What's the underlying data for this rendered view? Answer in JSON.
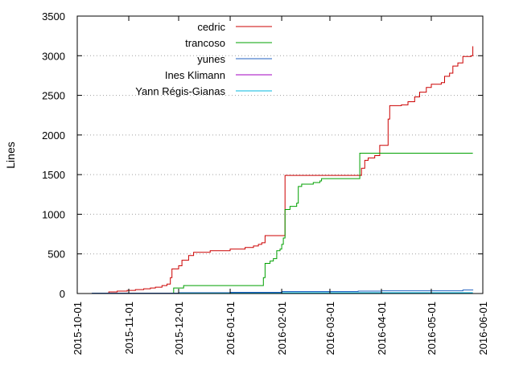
{
  "chart_data": {
    "type": "line",
    "title": "",
    "xlabel": "",
    "ylabel": "Lines",
    "x_type": "date",
    "xlim": [
      "2015-10-01",
      "2016-06-01"
    ],
    "ylim": [
      0,
      3500
    ],
    "y_ticks": [
      0,
      500,
      1000,
      1500,
      2000,
      2500,
      3000,
      3500
    ],
    "x_ticks": [
      "2015-10-01",
      "2015-11-01",
      "2015-12-01",
      "2016-01-01",
      "2016-02-01",
      "2016-03-01",
      "2016-04-01",
      "2016-05-01",
      "2016-06-01"
    ],
    "grid": "horizontal dotted",
    "legend_placement": "top-left",
    "step_lines": true,
    "series": [
      {
        "name": "cedric",
        "color": "#cc0000",
        "points": [
          [
            "2015-10-19",
            0
          ],
          [
            "2015-10-20",
            20
          ],
          [
            "2015-10-25",
            30
          ],
          [
            "2015-10-31",
            40
          ],
          [
            "2015-11-05",
            50
          ],
          [
            "2015-11-10",
            60
          ],
          [
            "2015-11-14",
            70
          ],
          [
            "2015-11-17",
            80
          ],
          [
            "2015-11-21",
            100
          ],
          [
            "2015-11-24",
            120
          ],
          [
            "2015-11-26",
            200
          ],
          [
            "2015-11-27",
            310
          ],
          [
            "2015-12-01",
            350
          ],
          [
            "2015-12-03",
            420
          ],
          [
            "2015-12-07",
            480
          ],
          [
            "2015-12-10",
            520
          ],
          [
            "2015-12-20",
            540
          ],
          [
            "2016-01-01",
            560
          ],
          [
            "2016-01-10",
            580
          ],
          [
            "2016-01-15",
            600
          ],
          [
            "2016-01-18",
            620
          ],
          [
            "2016-01-20",
            640
          ],
          [
            "2016-01-22",
            730
          ],
          [
            "2016-02-03",
            950
          ],
          [
            "2016-02-03",
            1490
          ],
          [
            "2016-03-08",
            1490
          ],
          [
            "2016-03-18",
            1490
          ],
          [
            "2016-03-20",
            1580
          ],
          [
            "2016-03-22",
            1680
          ],
          [
            "2016-03-24",
            1710
          ],
          [
            "2016-03-28",
            1740
          ],
          [
            "2016-03-31",
            1870
          ],
          [
            "2016-04-04",
            1870
          ],
          [
            "2016-04-05",
            2200
          ],
          [
            "2016-04-06",
            2370
          ],
          [
            "2016-04-13",
            2380
          ],
          [
            "2016-04-17",
            2420
          ],
          [
            "2016-04-21",
            2480
          ],
          [
            "2016-04-24",
            2540
          ],
          [
            "2016-04-28",
            2600
          ],
          [
            "2016-05-01",
            2640
          ],
          [
            "2016-05-07",
            2660
          ],
          [
            "2016-05-09",
            2740
          ],
          [
            "2016-05-12",
            2780
          ],
          [
            "2016-05-14",
            2870
          ],
          [
            "2016-05-17",
            2910
          ],
          [
            "2016-05-20",
            2990
          ],
          [
            "2016-05-25",
            3000
          ],
          [
            "2016-05-26",
            3120
          ]
        ]
      },
      {
        "name": "trancoso",
        "color": "#00a000",
        "points": [
          [
            "2015-11-27",
            0
          ],
          [
            "2015-11-28",
            70
          ],
          [
            "2015-12-04",
            100
          ],
          [
            "2016-01-19",
            100
          ],
          [
            "2016-01-21",
            200
          ],
          [
            "2016-01-22",
            380
          ],
          [
            "2016-01-25",
            410
          ],
          [
            "2016-01-27",
            440
          ],
          [
            "2016-01-29",
            540
          ],
          [
            "2016-01-31",
            560
          ],
          [
            "2016-02-01",
            620
          ],
          [
            "2016-02-02",
            700
          ],
          [
            "2016-02-03",
            1060
          ],
          [
            "2016-02-06",
            1100
          ],
          [
            "2016-02-10",
            1140
          ],
          [
            "2016-02-11",
            1350
          ],
          [
            "2016-02-13",
            1380
          ],
          [
            "2016-02-20",
            1400
          ],
          [
            "2016-02-24",
            1420
          ],
          [
            "2016-02-25",
            1450
          ],
          [
            "2016-03-18",
            1450
          ],
          [
            "2016-03-19",
            1770
          ],
          [
            "2016-05-26",
            1770
          ]
        ]
      },
      {
        "name": "yunes",
        "color": "#2060c0",
        "points": [
          [
            "2015-10-08",
            0
          ],
          [
            "2015-10-10",
            5
          ],
          [
            "2015-12-01",
            10
          ],
          [
            "2016-01-01",
            15
          ],
          [
            "2016-02-01",
            25
          ],
          [
            "2016-03-18",
            30
          ],
          [
            "2016-04-01",
            35
          ],
          [
            "2016-05-20",
            45
          ],
          [
            "2016-05-26",
            50
          ]
        ]
      },
      {
        "name": "Ines Klimann",
        "color": "#a000c0",
        "points": [
          [
            "2015-10-08",
            0
          ],
          [
            "2016-05-26",
            0
          ]
        ]
      },
      {
        "name": "Yann Régis-Gianas",
        "color": "#00b8e0",
        "points": [
          [
            "2015-10-08",
            0
          ],
          [
            "2015-12-01",
            5
          ],
          [
            "2016-02-01",
            10
          ],
          [
            "2016-05-26",
            10
          ]
        ]
      }
    ]
  }
}
